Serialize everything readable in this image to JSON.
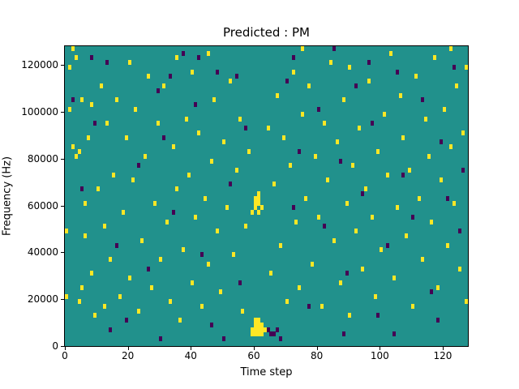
{
  "chart_data": {
    "type": "heatmap",
    "title": "Predicted : PM",
    "xlabel": "Time step",
    "ylabel": "Frequency (Hz)",
    "xlim": [
      0,
      128
    ],
    "ylim": [
      0,
      128000
    ],
    "x_ticks": [
      0,
      20,
      40,
      60,
      80,
      100,
      120
    ],
    "x_tick_labels": [
      "0",
      "20",
      "40",
      "60",
      "80",
      "100",
      "120"
    ],
    "y_ticks": [
      0,
      20000,
      40000,
      60000,
      80000,
      100000,
      120000
    ],
    "y_tick_labels": [
      "0",
      "20000",
      "40000",
      "60000",
      "80000",
      "100000",
      "120000"
    ],
    "grid": false,
    "legend": "none",
    "colors": {
      "background": "#21918c",
      "high": "#fde725",
      "low": "#440154"
    },
    "value_legend": {
      "0": "background (teal)",
      "1": "high (yellow)",
      "-1": "low (dark purple)"
    },
    "cell_size": {
      "time_steps": 1,
      "freq_hz": 2000
    },
    "cells": [
      [
        0,
        10,
        1
      ],
      [
        0,
        24,
        1
      ],
      [
        1,
        50,
        1
      ],
      [
        1,
        59,
        1
      ],
      [
        2,
        42,
        1
      ],
      [
        2,
        63,
        1
      ],
      [
        3,
        61,
        1
      ],
      [
        3,
        40,
        1
      ],
      [
        4,
        9,
        1
      ],
      [
        4,
        41,
        1
      ],
      [
        5,
        52,
        1
      ],
      [
        5,
        12,
        1
      ],
      [
        6,
        30,
        1
      ],
      [
        6,
        23,
        1
      ],
      [
        7,
        44,
        1
      ],
      [
        8,
        15,
        1
      ],
      [
        8,
        51,
        1
      ],
      [
        9,
        6,
        1
      ],
      [
        10,
        33,
        1
      ],
      [
        11,
        55,
        1
      ],
      [
        12,
        25,
        1
      ],
      [
        12,
        8,
        1
      ],
      [
        13,
        47,
        1
      ],
      [
        14,
        18,
        1
      ],
      [
        15,
        36,
        1
      ],
      [
        16,
        52,
        1
      ],
      [
        17,
        10,
        1
      ],
      [
        18,
        28,
        1
      ],
      [
        19,
        44,
        1
      ],
      [
        20,
        60,
        1
      ],
      [
        20,
        14,
        1
      ],
      [
        21,
        35,
        1
      ],
      [
        22,
        50,
        1
      ],
      [
        23,
        7,
        1
      ],
      [
        24,
        22,
        1
      ],
      [
        25,
        40,
        1
      ],
      [
        26,
        57,
        1
      ],
      [
        27,
        12,
        1
      ],
      [
        28,
        30,
        1
      ],
      [
        29,
        47,
        1
      ],
      [
        30,
        18,
        1
      ],
      [
        31,
        55,
        1
      ],
      [
        32,
        26,
        1
      ],
      [
        33,
        9,
        1
      ],
      [
        34,
        42,
        1
      ],
      [
        35,
        61,
        1
      ],
      [
        35,
        33,
        1
      ],
      [
        36,
        5,
        1
      ],
      [
        37,
        20,
        1
      ],
      [
        38,
        48,
        1
      ],
      [
        39,
        36,
        1
      ],
      [
        40,
        58,
        1
      ],
      [
        40,
        13,
        1
      ],
      [
        41,
        27,
        1
      ],
      [
        42,
        45,
        1
      ],
      [
        43,
        8,
        1
      ],
      [
        44,
        31,
        1
      ],
      [
        45,
        62,
        1
      ],
      [
        45,
        17,
        1
      ],
      [
        46,
        39,
        1
      ],
      [
        47,
        52,
        1
      ],
      [
        48,
        24,
        1
      ],
      [
        49,
        11,
        1
      ],
      [
        50,
        43,
        1
      ],
      [
        51,
        29,
        1
      ],
      [
        52,
        56,
        1
      ],
      [
        53,
        19,
        1
      ],
      [
        54,
        37,
        1
      ],
      [
        55,
        48,
        1
      ],
      [
        56,
        7,
        1
      ],
      [
        57,
        25,
        1
      ],
      [
        58,
        41,
        1
      ],
      [
        59,
        2,
        1
      ],
      [
        59,
        3,
        1
      ],
      [
        60,
        2,
        1
      ],
      [
        60,
        3,
        1
      ],
      [
        60,
        4,
        1
      ],
      [
        60,
        5,
        1
      ],
      [
        61,
        2,
        1
      ],
      [
        61,
        3,
        1
      ],
      [
        61,
        4,
        1
      ],
      [
        61,
        5,
        1
      ],
      [
        62,
        2,
        1
      ],
      [
        62,
        3,
        1
      ],
      [
        62,
        4,
        1
      ],
      [
        63,
        3,
        1
      ],
      [
        59,
        28,
        1
      ],
      [
        60,
        29,
        1
      ],
      [
        60,
        30,
        1
      ],
      [
        60,
        31,
        1
      ],
      [
        61,
        28,
        1
      ],
      [
        61,
        30,
        1
      ],
      [
        61,
        31,
        1
      ],
      [
        61,
        32,
        1
      ],
      [
        62,
        29,
        1
      ],
      [
        64,
        46,
        1
      ],
      [
        65,
        15,
        1
      ],
      [
        66,
        34,
        1
      ],
      [
        67,
        53,
        1
      ],
      [
        68,
        21,
        1
      ],
      [
        69,
        44,
        1
      ],
      [
        70,
        9,
        1
      ],
      [
        71,
        38,
        1
      ],
      [
        72,
        58,
        1
      ],
      [
        73,
        26,
        1
      ],
      [
        74,
        12,
        1
      ],
      [
        75,
        49,
        1
      ],
      [
        75,
        63,
        1
      ],
      [
        76,
        31,
        1
      ],
      [
        77,
        55,
        1
      ],
      [
        78,
        17,
        1
      ],
      [
        79,
        40,
        1
      ],
      [
        80,
        27,
        1
      ],
      [
        81,
        8,
        1
      ],
      [
        82,
        47,
        1
      ],
      [
        83,
        35,
        1
      ],
      [
        84,
        60,
        1
      ],
      [
        85,
        22,
        1
      ],
      [
        86,
        43,
        1
      ],
      [
        87,
        13,
        1
      ],
      [
        88,
        52,
        1
      ],
      [
        89,
        30,
        1
      ],
      [
        90,
        59,
        1
      ],
      [
        90,
        6,
        1
      ],
      [
        91,
        38,
        1
      ],
      [
        92,
        24,
        1
      ],
      [
        93,
        46,
        1
      ],
      [
        94,
        16,
        1
      ],
      [
        95,
        33,
        1
      ],
      [
        96,
        56,
        1
      ],
      [
        97,
        27,
        1
      ],
      [
        98,
        10,
        1
      ],
      [
        99,
        41,
        1
      ],
      [
        100,
        20,
        1
      ],
      [
        101,
        49,
        1
      ],
      [
        102,
        36,
        1
      ],
      [
        103,
        62,
        1
      ],
      [
        104,
        14,
        1
      ],
      [
        105,
        29,
        1
      ],
      [
        106,
        53,
        1
      ],
      [
        107,
        44,
        1
      ],
      [
        108,
        23,
        1
      ],
      [
        109,
        37,
        1
      ],
      [
        110,
        8,
        1
      ],
      [
        111,
        57,
        1
      ],
      [
        112,
        31,
        1
      ],
      [
        113,
        18,
        1
      ],
      [
        114,
        48,
        1
      ],
      [
        115,
        40,
        1
      ],
      [
        116,
        26,
        1
      ],
      [
        117,
        61,
        1
      ],
      [
        118,
        12,
        1
      ],
      [
        119,
        35,
        1
      ],
      [
        120,
        50,
        1
      ],
      [
        121,
        21,
        1
      ],
      [
        122,
        63,
        1
      ],
      [
        122,
        42,
        1
      ],
      [
        123,
        30,
        1
      ],
      [
        124,
        55,
        1
      ],
      [
        125,
        16,
        1
      ],
      [
        126,
        45,
        1
      ],
      [
        127,
        9,
        1
      ],
      [
        127,
        59,
        1
      ],
      [
        2,
        52,
        -1
      ],
      [
        5,
        33,
        -1
      ],
      [
        8,
        61,
        -1
      ],
      [
        9,
        47,
        -1
      ],
      [
        13,
        60,
        -1
      ],
      [
        14,
        3,
        -1
      ],
      [
        16,
        21,
        -1
      ],
      [
        19,
        5,
        -1
      ],
      [
        23,
        38,
        -1
      ],
      [
        26,
        16,
        -1
      ],
      [
        29,
        54,
        -1
      ],
      [
        30,
        1,
        -1
      ],
      [
        31,
        44,
        -1
      ],
      [
        33,
        57,
        -1
      ],
      [
        34,
        28,
        -1
      ],
      [
        37,
        62,
        -1
      ],
      [
        41,
        51,
        -1
      ],
      [
        42,
        61,
        -1
      ],
      [
        43,
        19,
        -1
      ],
      [
        46,
        4,
        -1
      ],
      [
        48,
        58,
        -1
      ],
      [
        50,
        1,
        -1
      ],
      [
        52,
        34,
        -1
      ],
      [
        54,
        57,
        -1
      ],
      [
        55,
        13,
        -1
      ],
      [
        57,
        46,
        -1
      ],
      [
        64,
        3,
        -1
      ],
      [
        65,
        2,
        -1
      ],
      [
        66,
        2,
        -1
      ],
      [
        67,
        3,
        -1
      ],
      [
        68,
        1,
        -1
      ],
      [
        70,
        56,
        -1
      ],
      [
        72,
        29,
        -1
      ],
      [
        72,
        61,
        -1
      ],
      [
        74,
        41,
        -1
      ],
      [
        77,
        8,
        -1
      ],
      [
        80,
        50,
        -1
      ],
      [
        82,
        25,
        -1
      ],
      [
        85,
        63,
        -1
      ],
      [
        87,
        39,
        -1
      ],
      [
        88,
        2,
        -1
      ],
      [
        89,
        15,
        -1
      ],
      [
        92,
        55,
        -1
      ],
      [
        94,
        32,
        -1
      ],
      [
        96,
        60,
        -1
      ],
      [
        97,
        47,
        -1
      ],
      [
        99,
        6,
        -1
      ],
      [
        102,
        21,
        -1
      ],
      [
        104,
        2,
        -1
      ],
      [
        105,
        58,
        -1
      ],
      [
        107,
        36,
        -1
      ],
      [
        110,
        27,
        -1
      ],
      [
        113,
        52,
        -1
      ],
      [
        116,
        11,
        -1
      ],
      [
        118,
        5,
        -1
      ],
      [
        119,
        43,
        -1
      ],
      [
        121,
        31,
        -1
      ],
      [
        123,
        59,
        -1
      ],
      [
        125,
        24,
        -1
      ],
      [
        126,
        37,
        -1
      ]
    ]
  }
}
